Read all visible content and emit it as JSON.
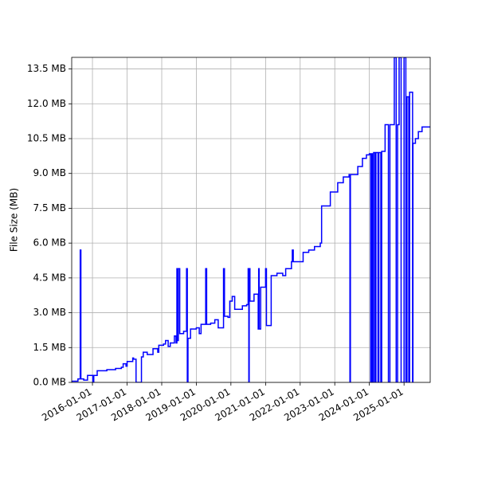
{
  "chart_data": {
    "type": "line",
    "step": "post",
    "ylabel": "File Size (MB)",
    "xlim": [
      "2015-05-27",
      "2025-10-04"
    ],
    "xticks": [
      "2016-01-01",
      "2017-01-01",
      "2018-01-01",
      "2019-01-01",
      "2020-01-01",
      "2021-01-01",
      "2022-01-01",
      "2023-01-01",
      "2024-01-01",
      "2025-01-01"
    ],
    "ylim": [
      0,
      14
    ],
    "yticks": [
      {
        "value": 0,
        "label": "0.0 MB"
      },
      {
        "value": 1.5,
        "label": "1.5 MB"
      },
      {
        "value": 3,
        "label": "3.0 MB"
      },
      {
        "value": 4.5,
        "label": "4.5 MB"
      },
      {
        "value": 6,
        "label": "6.0 MB"
      },
      {
        "value": 7.5,
        "label": "7.5 MB"
      },
      {
        "value": 9,
        "label": "9.0 MB"
      },
      {
        "value": 10.5,
        "label": "10.5 MB"
      },
      {
        "value": 12,
        "label": "12.0 MB"
      },
      {
        "value": 13.5,
        "label": "13.5 MB"
      }
    ],
    "grid": true,
    "x": [
      "2015-05-27",
      "2015-08-01",
      "2015-08-25",
      "2015-09-01",
      "2015-10-01",
      "2015-11-10",
      "2016-01-05",
      "2016-01-15",
      "2016-02-20",
      "2016-06-01",
      "2016-09-01",
      "2016-11-01",
      "2016-11-20",
      "2016-12-20",
      "2017-01-01",
      "2017-03-01",
      "2017-03-10",
      "2017-04-05",
      "2017-06-01",
      "2017-06-20",
      "2017-08-01",
      "2017-10-01",
      "2017-11-20",
      "2017-12-01",
      "2018-01-20",
      "2018-02-10",
      "2018-03-10",
      "2018-04-01",
      "2018-05-15",
      "2018-06-01",
      "2018-06-10",
      "2018-06-20",
      "2018-06-25",
      "2018-07-10",
      "2018-08-20",
      "2018-09-20",
      "2018-09-28",
      "2018-10-05",
      "2018-11-01",
      "2019-01-01",
      "2019-02-01",
      "2019-02-20",
      "2019-04-10",
      "2019-04-20",
      "2019-06-01",
      "2019-07-15",
      "2019-08-20",
      "2019-10-15",
      "2019-10-25",
      "2019-12-01",
      "2019-12-20",
      "2020-01-15",
      "2020-02-10",
      "2020-05-01",
      "2020-06-15",
      "2020-07-01",
      "2020-07-08",
      "2020-07-12",
      "2020-07-20",
      "2020-09-01",
      "2020-10-15",
      "2020-10-20",
      "2020-10-25",
      "2020-11-10",
      "2021-01-01",
      "2021-01-10",
      "2021-03-01",
      "2021-05-01",
      "2021-07-01",
      "2021-08-01",
      "2021-10-01",
      "2021-10-10",
      "2021-10-20",
      "2022-02-01",
      "2022-04-01",
      "2022-06-01",
      "2022-08-01",
      "2022-08-15",
      "2022-11-15",
      "2023-02-01",
      "2023-04-01",
      "2023-06-01",
      "2023-06-10",
      "2023-06-15",
      "2023-09-01",
      "2023-10-20",
      "2023-12-01",
      "2024-01-01",
      "2024-01-15",
      "2024-01-25",
      "2024-02-05",
      "2024-02-15",
      "2024-03-01",
      "2024-03-10",
      "2024-04-01",
      "2024-04-10",
      "2024-05-01",
      "2024-05-10",
      "2024-06-15",
      "2024-07-20",
      "2024-08-05",
      "2024-09-20",
      "2024-10-10",
      "2024-10-25",
      "2024-11-10",
      "2024-12-01",
      "2025-01-01",
      "2025-01-20",
      "2025-02-01",
      "2025-02-20",
      "2025-03-01",
      "2025-04-01",
      "2025-04-05",
      "2025-05-01",
      "2025-06-01",
      "2025-07-10",
      "2025-10-04"
    ],
    "series": [
      {
        "name": "File Size",
        "color": "#0000ff",
        "values": [
          0.05,
          0.15,
          5.7,
          0.15,
          0.1,
          0.3,
          0.0,
          0.3,
          0.5,
          0.55,
          0.6,
          0.65,
          0.8,
          0.7,
          0.9,
          1.05,
          1.0,
          0.0,
          1.1,
          1.3,
          1.2,
          1.45,
          1.3,
          1.6,
          1.65,
          1.8,
          1.55,
          1.7,
          2.0,
          1.7,
          4.9,
          1.8,
          4.9,
          2.1,
          2.2,
          4.9,
          0.0,
          1.9,
          2.3,
          2.35,
          2.1,
          2.5,
          4.9,
          2.5,
          2.55,
          2.7,
          2.35,
          4.9,
          2.85,
          2.8,
          3.5,
          3.7,
          3.15,
          3.3,
          3.35,
          4.9,
          0.0,
          4.9,
          3.5,
          3.8,
          2.3,
          4.9,
          2.3,
          4.1,
          4.9,
          2.45,
          4.6,
          4.7,
          4.6,
          4.9,
          5.2,
          5.7,
          5.2,
          5.6,
          5.7,
          5.85,
          6.0,
          7.6,
          8.2,
          8.6,
          8.85,
          8.95,
          0.0,
          8.95,
          9.3,
          9.65,
          9.8,
          9.85,
          0.0,
          9.85,
          0.0,
          9.9,
          0.0,
          9.9,
          0.0,
          9.9,
          0.0,
          9.95,
          11.1,
          0.0,
          11.1,
          14.0,
          0.0,
          11.1,
          14.0,
          0.0,
          14.0,
          0.0,
          12.3,
          0.0,
          12.5,
          0.0,
          10.3,
          10.5,
          10.8,
          11.0,
          11.0
        ]
      }
    ]
  }
}
